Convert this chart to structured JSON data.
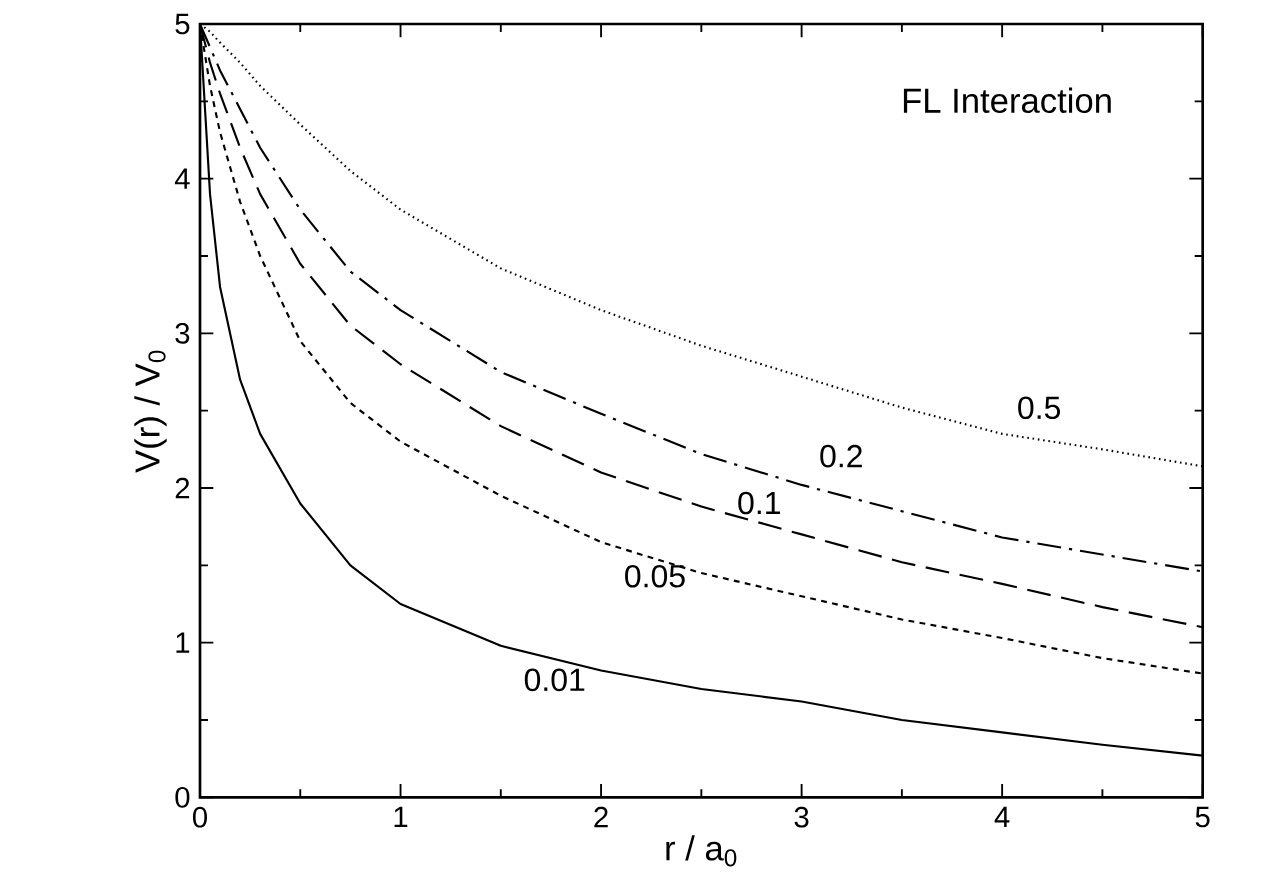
{
  "chart_data": {
    "type": "line",
    "title": "FL Interaction",
    "xlabel": "r / a$_{0}$",
    "ylabel": "V(r) / V$_{0}$",
    "x": [
      0,
      0.05,
      0.1,
      0.2,
      0.3,
      0.5,
      0.75,
      1,
      1.5,
      2,
      2.5,
      3,
      3.5,
      4,
      4.5,
      5
    ],
    "series": [
      {
        "name": "0.01",
        "color": "#000000",
        "line_style": "solid",
        "values": [
          5,
          3.9,
          3.3,
          2.7,
          2.35,
          1.9,
          1.5,
          1.25,
          0.98,
          0.82,
          0.7,
          0.62,
          0.5,
          0.42,
          0.34,
          0.27
        ]
      },
      {
        "name": "0.05",
        "color": "#000000",
        "line_style": "dashed",
        "values": [
          5,
          4.6,
          4.3,
          3.85,
          3.5,
          2.95,
          2.55,
          2.3,
          1.95,
          1.65,
          1.45,
          1.3,
          1.15,
          1.03,
          0.9,
          0.8
        ]
      },
      {
        "name": "0.1",
        "color": "#000000",
        "line_style": "long dashed",
        "values": [
          5,
          4.75,
          4.55,
          4.2,
          3.9,
          3.45,
          3.05,
          2.8,
          2.4,
          2.1,
          1.88,
          1.7,
          1.52,
          1.38,
          1.23,
          1.1
        ]
      },
      {
        "name": "0.2",
        "color": "#000000",
        "line_style": "dash-dot",
        "values": [
          5,
          4.85,
          4.7,
          4.45,
          4.2,
          3.8,
          3.4,
          3.15,
          2.75,
          2.48,
          2.22,
          2.02,
          1.85,
          1.68,
          1.57,
          1.46
        ]
      },
      {
        "name": "0.5",
        "color": "#000000",
        "line_style": "dotted",
        "values": [
          5,
          4.95,
          4.88,
          4.75,
          4.6,
          4.35,
          4.05,
          3.8,
          3.42,
          3.15,
          2.92,
          2.72,
          2.52,
          2.35,
          2.25,
          2.14
        ]
      }
    ],
    "xlim": [
      0,
      5
    ],
    "ylim": [
      0,
      5
    ],
    "xticks": [
      0,
      1,
      2,
      3,
      4,
      5
    ],
    "yticks": [
      0,
      1,
      2,
      3,
      4,
      5
    ],
    "grid": false,
    "marker": "none"
  }
}
